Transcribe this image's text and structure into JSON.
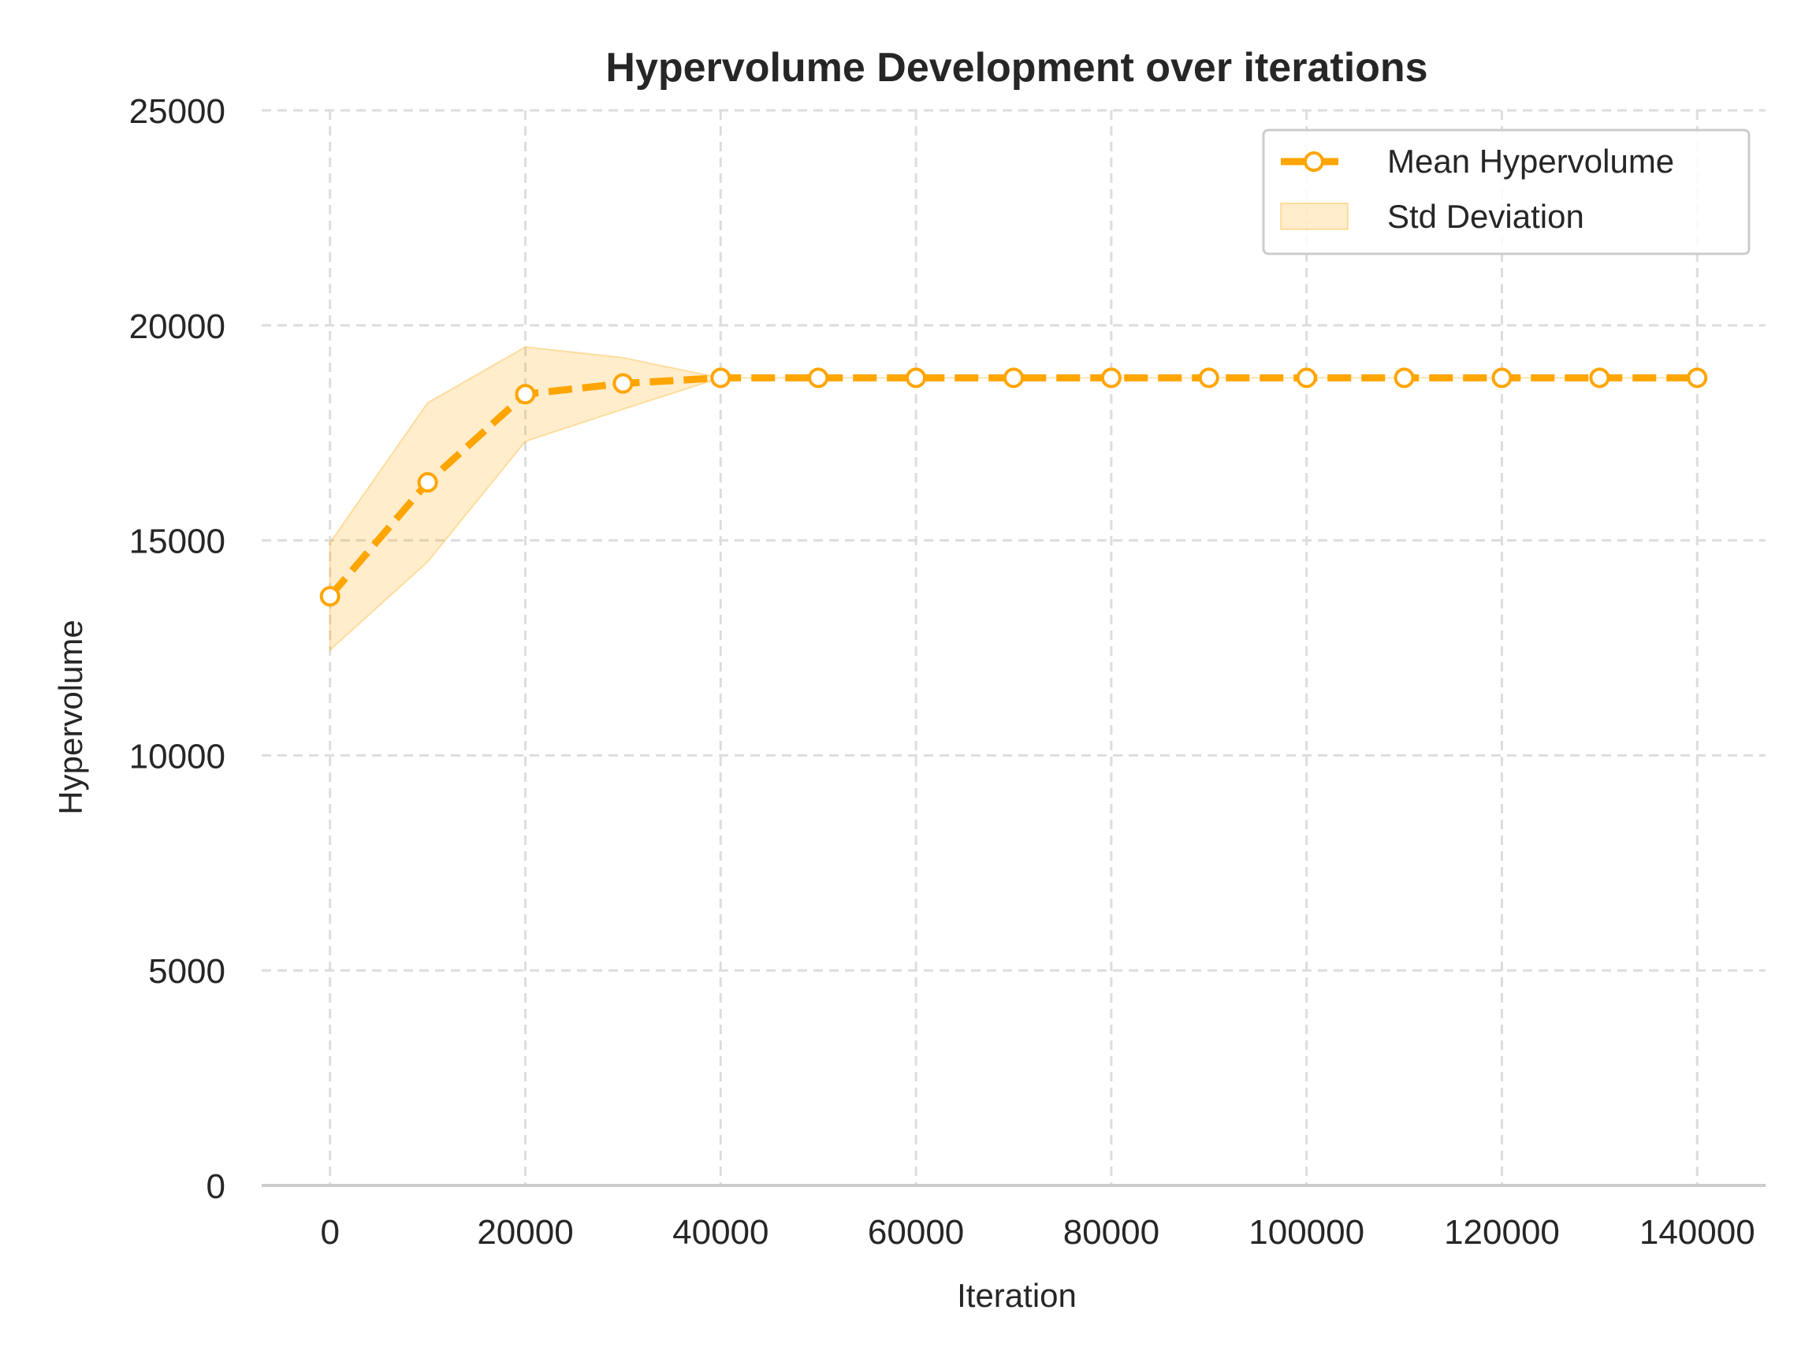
{
  "chart_data": {
    "type": "line",
    "title": "Hypervolume Development over iterations",
    "xlabel": "Iteration",
    "ylabel": "Hypervolume",
    "xlim": [
      -7000,
      147000
    ],
    "ylim": [
      0,
      25000
    ],
    "xticks": [
      0,
      20000,
      40000,
      60000,
      80000,
      100000,
      120000,
      140000
    ],
    "yticks": [
      0,
      5000,
      10000,
      15000,
      20000,
      25000
    ],
    "grid": true,
    "legend_position": "top-right",
    "x": [
      0,
      10000,
      20000,
      30000,
      40000,
      50000,
      60000,
      70000,
      80000,
      90000,
      100000,
      110000,
      120000,
      130000,
      140000
    ],
    "series": [
      {
        "name": "Mean Hypervolume",
        "style": "dashed line with hollow circle markers",
        "color": "#FFA500",
        "values": [
          13700,
          16350,
          18400,
          18650,
          18780,
          18780,
          18780,
          18780,
          18780,
          18780,
          18780,
          18780,
          18780,
          18780,
          18780
        ]
      }
    ],
    "band": {
      "name": "Std Deviation",
      "color": "#FFA500",
      "lower": [
        12450,
        14500,
        17300,
        18050,
        18780,
        18780,
        18780,
        18780,
        18780,
        18780,
        18780,
        18780,
        18780,
        18780,
        18780
      ],
      "upper": [
        14950,
        18200,
        19500,
        19250,
        18780,
        18780,
        18780,
        18780,
        18780,
        18780,
        18780,
        18780,
        18780,
        18780,
        18780
      ]
    }
  }
}
